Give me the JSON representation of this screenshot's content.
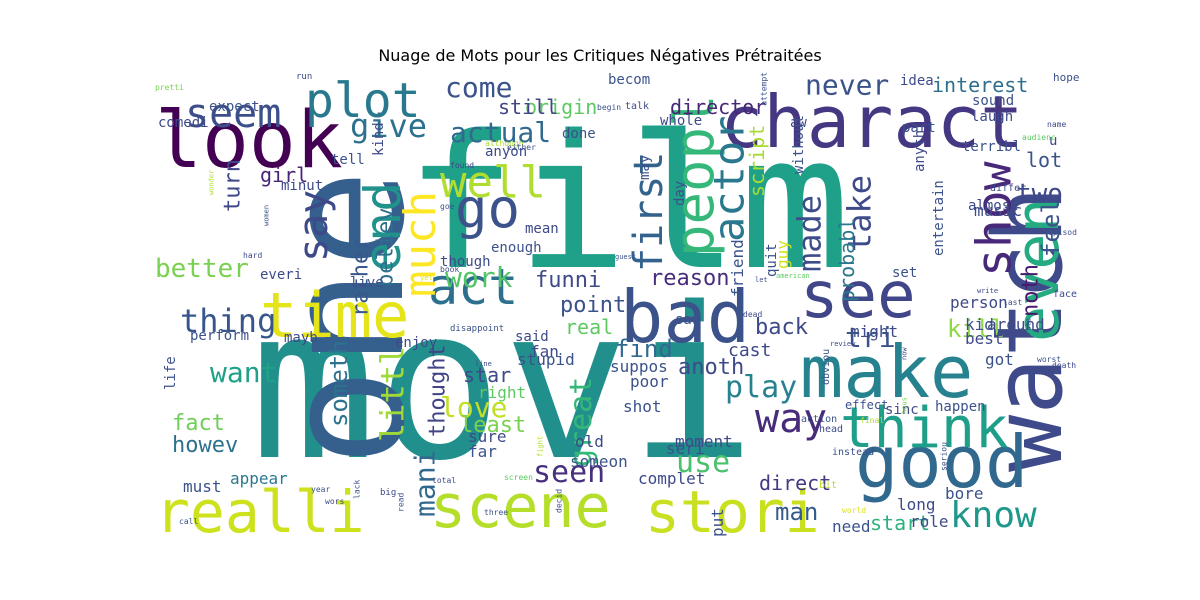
{
  "title": "Nuage de Mots pour les Critiques Négatives Prétraitées",
  "words": [
    {
      "text": "movi",
      "color": "#21908d"
    },
    {
      "text": "film",
      "color": "#1fa088"
    },
    {
      "text": "one",
      "color": "#355f8d"
    },
    {
      "text": "watch",
      "color": "#3e4a89"
    },
    {
      "text": "charact",
      "color": "#453781"
    },
    {
      "text": "look",
      "color": "#440154"
    },
    {
      "text": "bad",
      "color": "#3b528b"
    },
    {
      "text": "make",
      "color": "#26828e"
    },
    {
      "text": "see",
      "color": "#404688"
    },
    {
      "text": "even",
      "color": "#25ab82"
    },
    {
      "text": "good",
      "color": "#31688e"
    },
    {
      "text": "time",
      "color": "#e4e419"
    },
    {
      "text": "realli",
      "color": "#cde11d"
    },
    {
      "text": "scene",
      "color": "#b5de2b"
    },
    {
      "text": "stori",
      "color": "#c8e020"
    },
    {
      "text": "think",
      "color": "#1f9e89"
    },
    {
      "text": "act",
      "color": "#2d708e"
    },
    {
      "text": "peopl",
      "color": "#35b779"
    },
    {
      "text": "go",
      "color": "#3b528b"
    },
    {
      "text": "end",
      "color": "#21918c"
    },
    {
      "text": "plot",
      "color": "#29798e"
    },
    {
      "text": "seem",
      "color": "#3c4f8a"
    },
    {
      "text": "well",
      "color": "#b0dd2f"
    },
    {
      "text": "show",
      "color": "#482979"
    },
    {
      "text": "first",
      "color": "#33638d"
    },
    {
      "text": "much",
      "color": "#fde725"
    },
    {
      "text": "say",
      "color": "#3e4989"
    },
    {
      "text": "actor",
      "color": "#2a788e"
    },
    {
      "text": "way",
      "color": "#472c7a"
    },
    {
      "text": "know",
      "color": "#1f988b"
    },
    {
      "text": "made",
      "color": "#3e4c8a"
    },
    {
      "text": "give",
      "color": "#2d718e"
    },
    {
      "text": "actual",
      "color": "#306a8e"
    },
    {
      "text": "come",
      "color": "#3b528b"
    },
    {
      "text": "never",
      "color": "#3b528b"
    },
    {
      "text": "interest",
      "color": "#2e6f8e"
    },
    {
      "text": "director",
      "color": "#482677"
    },
    {
      "text": "origin",
      "color": "#5ec962"
    },
    {
      "text": "still",
      "color": "#414487"
    },
    {
      "text": "take",
      "color": "#3e4a89"
    },
    {
      "text": "two",
      "color": "#3f4889"
    },
    {
      "text": "lot",
      "color": "#3a538b"
    },
    {
      "text": "feel",
      "color": "#3b528b"
    },
    {
      "text": "noth",
      "color": "#481b6d"
    },
    {
      "text": "thing",
      "color": "#39568c"
    },
    {
      "text": "better",
      "color": "#7ad151"
    },
    {
      "text": "work",
      "color": "#54c568"
    },
    {
      "text": "believ",
      "color": "#2e6e8e"
    },
    {
      "text": "rather",
      "color": "#38588c"
    },
    {
      "text": "turn",
      "color": "#3f4788"
    },
    {
      "text": "girl",
      "color": "#482475"
    },
    {
      "text": "want",
      "color": "#1fa188"
    },
    {
      "text": "someth",
      "color": "#2c728e"
    },
    {
      "text": "littl",
      "color": "#a0da39"
    },
    {
      "text": "mani",
      "color": "#31688e"
    },
    {
      "text": "thought",
      "color": "#414487"
    },
    {
      "text": "love",
      "color": "#c2df23"
    },
    {
      "text": "great",
      "color": "#35b779"
    },
    {
      "text": "star",
      "color": "#3e4989"
    },
    {
      "text": "play",
      "color": "#26828e"
    },
    {
      "text": "tri",
      "color": "#3b528b"
    },
    {
      "text": "kill",
      "color": "#8fd744"
    },
    {
      "text": "back",
      "color": "#3e4989"
    },
    {
      "text": "find",
      "color": "#306a8e"
    },
    {
      "text": "use",
      "color": "#4ac16d"
    },
    {
      "text": "seen",
      "color": "#472f7d"
    },
    {
      "text": "direct",
      "color": "#443983"
    },
    {
      "text": "man",
      "color": "#375a8c"
    },
    {
      "text": "start",
      "color": "#2db27d"
    },
    {
      "text": "fact",
      "color": "#6ece58"
    },
    {
      "text": "howev",
      "color": "#2d718e"
    },
    {
      "text": "funni",
      "color": "#3e4a89"
    },
    {
      "text": "reason",
      "color": "#472d7b"
    },
    {
      "text": "point",
      "color": "#3b528b"
    },
    {
      "text": "real",
      "color": "#5ec962"
    },
    {
      "text": "script",
      "color": "#a8db34"
    },
    {
      "text": "probabl",
      "color": "#2a788e"
    },
    {
      "text": "anoth",
      "color": "#3e4a89"
    },
    {
      "text": "cast",
      "color": "#3e4a89"
    },
    {
      "text": "friend",
      "color": "#3b528b"
    },
    {
      "text": "guy",
      "color": "#d8e219"
    },
    {
      "text": "perform",
      "color": "#3b528b"
    },
    {
      "text": "everi",
      "color": "#3e4a89"
    },
    {
      "text": "live",
      "color": "#3b528b"
    },
    {
      "text": "enjoy",
      "color": "#3e4a89"
    },
    {
      "text": "stupid",
      "color": "#3b528b"
    },
    {
      "text": "fan",
      "color": "#3e4a89"
    },
    {
      "text": "suppos",
      "color": "#3b528b"
    },
    {
      "text": "poor",
      "color": "#3b528b"
    },
    {
      "text": "shot",
      "color": "#3b528b"
    },
    {
      "text": "least",
      "color": "#7ad151"
    },
    {
      "text": "right",
      "color": "#5ec962"
    },
    {
      "text": "sure",
      "color": "#3e4a89"
    },
    {
      "text": "far",
      "color": "#3b528b"
    },
    {
      "text": "old",
      "color": "#3e4a89"
    },
    {
      "text": "someon",
      "color": "#3b528b"
    },
    {
      "text": "moment",
      "color": "#3e4a89"
    },
    {
      "text": "seri",
      "color": "#3b528b"
    },
    {
      "text": "complet",
      "color": "#3e4a89"
    },
    {
      "text": "put",
      "color": "#3b528b"
    },
    {
      "text": "appear",
      "color": "#2a788e"
    },
    {
      "text": "must",
      "color": "#3b528b"
    },
    {
      "text": "long",
      "color": "#3e4a89"
    },
    {
      "text": "need",
      "color": "#3b528b"
    },
    {
      "text": "role",
      "color": "#3e4a89"
    },
    {
      "text": "bore",
      "color": "#3b528b"
    },
    {
      "text": "person",
      "color": "#3e4a89"
    },
    {
      "text": "kid",
      "color": "#3b528b"
    },
    {
      "text": "best",
      "color": "#3e4a89"
    },
    {
      "text": "got",
      "color": "#3b528b"
    },
    {
      "text": "around",
      "color": "#3e4a89"
    },
    {
      "text": "set",
      "color": "#3b528b"
    },
    {
      "text": "might",
      "color": "#3e4a89"
    },
    {
      "text": "happen",
      "color": "#3b528b"
    },
    {
      "text": "sinc",
      "color": "#3e4a89"
    },
    {
      "text": "effect",
      "color": "#3b528b"
    },
    {
      "text": "music",
      "color": "#3e4a89"
    },
    {
      "text": "entertain",
      "color": "#3b528b"
    },
    {
      "text": "almost",
      "color": "#3e4a89"
    },
    {
      "text": "terribl",
      "color": "#3b528b"
    },
    {
      "text": "laugh",
      "color": "#3e4a89"
    },
    {
      "text": "sound",
      "color": "#3b528b"
    },
    {
      "text": "idea",
      "color": "#3e4a89"
    },
    {
      "text": "part",
      "color": "#3b528b"
    },
    {
      "text": "whole",
      "color": "#3e4a89"
    },
    {
      "text": "done",
      "color": "#3b528b"
    },
    {
      "text": "aw",
      "color": "#3e4a89"
    },
    {
      "text": "without",
      "color": "#3b528b"
    },
    {
      "text": "anyth",
      "color": "#3e4a89"
    },
    {
      "text": "may",
      "color": "#3b528b"
    },
    {
      "text": "anyon",
      "color": "#3e4a89"
    },
    {
      "text": "day",
      "color": "#3b528b"
    },
    {
      "text": "mean",
      "color": "#3e4a89"
    },
    {
      "text": "enough",
      "color": "#3b528b"
    },
    {
      "text": "though",
      "color": "#3e4a89"
    },
    {
      "text": "saw",
      "color": "#3b528b"
    },
    {
      "text": "said",
      "color": "#3e4a89"
    },
    {
      "text": "quit",
      "color": "#3b528b"
    },
    {
      "text": "minut",
      "color": "#3e4a89"
    },
    {
      "text": "tell",
      "color": "#3b528b"
    },
    {
      "text": "kind",
      "color": "#3e4a89"
    },
    {
      "text": "expect",
      "color": "#3b528b"
    },
    {
      "text": "comedi",
      "color": "#3e4a89"
    },
    {
      "text": "becom",
      "color": "#3b528b"
    },
    {
      "text": "mayb",
      "color": "#3e4a89"
    },
    {
      "text": "life",
      "color": "#3b528b"
    },
    {
      "text": "u",
      "color": "#3e4a89"
    },
    {
      "text": "hope",
      "color": "#3b528b"
    },
    {
      "text": "name",
      "color": "#3e4a89"
    },
    {
      "text": "episod",
      "color": "#3b528b"
    },
    {
      "text": "face",
      "color": "#3e4a89"
    },
    {
      "text": "worst",
      "color": "#3b528b"
    },
    {
      "text": "death",
      "color": "#3e4a89"
    },
    {
      "text": "instead",
      "color": "#3b528b"
    },
    {
      "text": "head",
      "color": "#3e4a89"
    },
    {
      "text": "action",
      "color": "#3b528b"
    },
    {
      "text": "final",
      "color": "#aadc32"
    },
    {
      "text": "bit",
      "color": "#b8de29"
    },
    {
      "text": "world",
      "color": "#dde318"
    },
    {
      "text": "seriou",
      "color": "#3b528b"
    },
    {
      "text": "differ",
      "color": "#3e4a89"
    },
    {
      "text": "audienc",
      "color": "#5ec962"
    },
    {
      "text": "attempt",
      "color": "#3b528b"
    },
    {
      "text": "talk",
      "color": "#3e4a89"
    },
    {
      "text": "begin",
      "color": "#3b528b"
    },
    {
      "text": "pretti",
      "color": "#7ad151"
    },
    {
      "text": "run",
      "color": "#3e4a89"
    },
    {
      "text": "wonder",
      "color": "#b5de2b"
    },
    {
      "text": "women",
      "color": "#3b528b"
    },
    {
      "text": "hard",
      "color": "#3e4a89"
    },
    {
      "text": "although",
      "color": "#aadc32"
    },
    {
      "text": "either",
      "color": "#3b528b"
    },
    {
      "text": "found",
      "color": "#3e4a89"
    },
    {
      "text": "goe",
      "color": "#3b528b"
    },
    {
      "text": "book",
      "color": "#3e4a89"
    },
    {
      "text": "disappoint",
      "color": "#3b528b"
    },
    {
      "text": "line",
      "color": "#3e4a89"
    },
    {
      "text": "guess",
      "color": "#3b528b"
    },
    {
      "text": "american",
      "color": "#5ec962"
    },
    {
      "text": "write",
      "color": "#3e4a89"
    },
    {
      "text": "last",
      "color": "#3b528b"
    },
    {
      "text": "review",
      "color": "#3e4a89"
    },
    {
      "text": "year",
      "color": "#3b528b"
    },
    {
      "text": "wors",
      "color": "#3e4a89"
    },
    {
      "text": "lack",
      "color": "#3b528b"
    },
    {
      "text": "big",
      "color": "#3e4a89"
    },
    {
      "text": "read",
      "color": "#3b528b"
    },
    {
      "text": "total",
      "color": "#3e4a89"
    },
    {
      "text": "screen",
      "color": "#5ec962"
    },
    {
      "text": "three",
      "color": "#3b528b"
    },
    {
      "text": "decid",
      "color": "#3e4a89"
    },
    {
      "text": "call",
      "color": "#3b528b"
    },
    {
      "text": "fight",
      "color": "#b5de2b"
    },
    {
      "text": "yet",
      "color": "#dde318"
    },
    {
      "text": "let",
      "color": "#3b528b"
    },
    {
      "text": "rate",
      "color": "#3e4a89"
    },
    {
      "text": "now",
      "color": "#3b528b"
    },
    {
      "text": "dead",
      "color": "#3e4a89"
    },
    {
      "text": "hous",
      "color": "#7ad151"
    },
    {
      "text": "obviou",
      "color": "#3b528b"
    }
  ]
}
